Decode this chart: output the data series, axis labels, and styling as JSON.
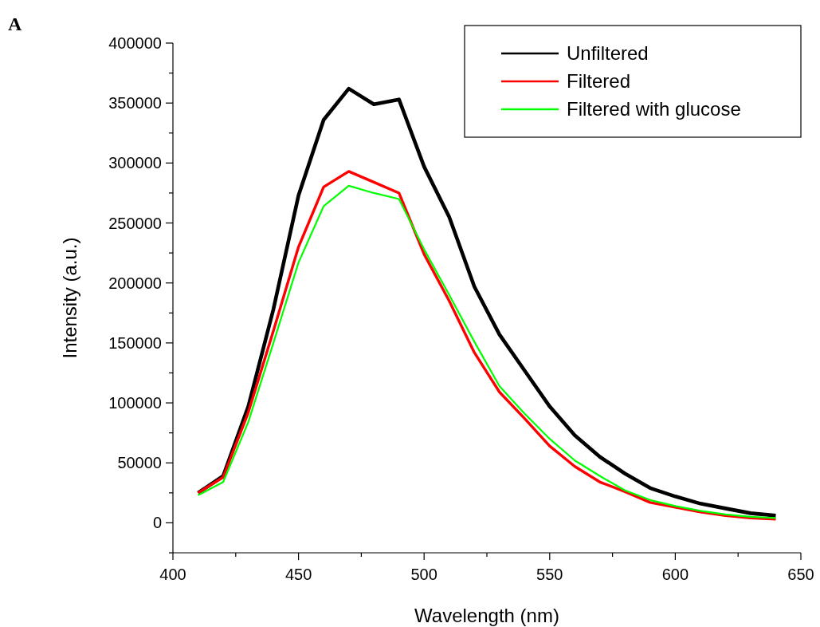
{
  "chart_data": {
    "type": "line",
    "xlabel": "Wavelength (nm)",
    "ylabel": "Intensity (a.u.)",
    "annotations": [
      "A"
    ],
    "x": [
      410,
      420,
      430,
      440,
      450,
      460,
      470,
      480,
      490,
      500,
      510,
      520,
      530,
      540,
      550,
      560,
      570,
      580,
      590,
      600,
      610,
      620,
      630,
      640
    ],
    "series": [
      {
        "name": "Unfiltered",
        "color": "#000000",
        "values": [
          25000,
          39000,
          97000,
          178000,
          273000,
          336000,
          362000,
          349000,
          353000,
          297000,
          255000,
          197000,
          157000,
          127000,
          97000,
          73000,
          55000,
          41000,
          29000,
          22000,
          16000,
          12000,
          8000,
          6000
        ]
      },
      {
        "name": "Filtered",
        "color": "#ff0000",
        "values": [
          25000,
          38000,
          92000,
          160000,
          230000,
          280000,
          293000,
          284000,
          275000,
          224000,
          185000,
          142000,
          109000,
          87000,
          64000,
          47000,
          34000,
          26000,
          17000,
          13000,
          9000,
          6000,
          4000,
          3000
        ]
      },
      {
        "name": "Filtered with glucose",
        "color": "#00ff00",
        "values": [
          23000,
          34000,
          84000,
          150000,
          217000,
          264000,
          281000,
          275000,
          270000,
          228000,
          190000,
          151000,
          114000,
          91000,
          70000,
          52000,
          39000,
          27000,
          19000,
          14000,
          10000,
          7000,
          5000,
          4000
        ]
      }
    ],
    "xlim": [
      400,
      650
    ],
    "xticks": [
      400,
      {
        "value": 425,
        "label": null
      },
      450,
      {
        "value": 475,
        "label": null
      },
      500,
      {
        "value": 525,
        "label": null
      },
      550,
      {
        "value": 575,
        "label": null
      },
      600,
      {
        "value": 625,
        "label": null
      },
      650
    ],
    "ylim": [
      -25000,
      400000
    ],
    "yticks": [
      {
        "value": -25000,
        "label": null
      },
      0,
      {
        "value": 25000,
        "label": null
      },
      50000,
      {
        "value": 75000,
        "label": null
      },
      100000,
      {
        "value": 125000,
        "label": null
      },
      150000,
      {
        "value": 175000,
        "label": null
      },
      200000,
      {
        "value": 225000,
        "label": null
      },
      250000,
      {
        "value": 275000,
        "label": null
      },
      300000,
      {
        "value": 325000,
        "label": null
      },
      350000,
      {
        "value": 375000,
        "label": null
      },
      400000
    ],
    "grid": false,
    "legend": "top right",
    "marker": "none",
    "line_style": "solid"
  }
}
